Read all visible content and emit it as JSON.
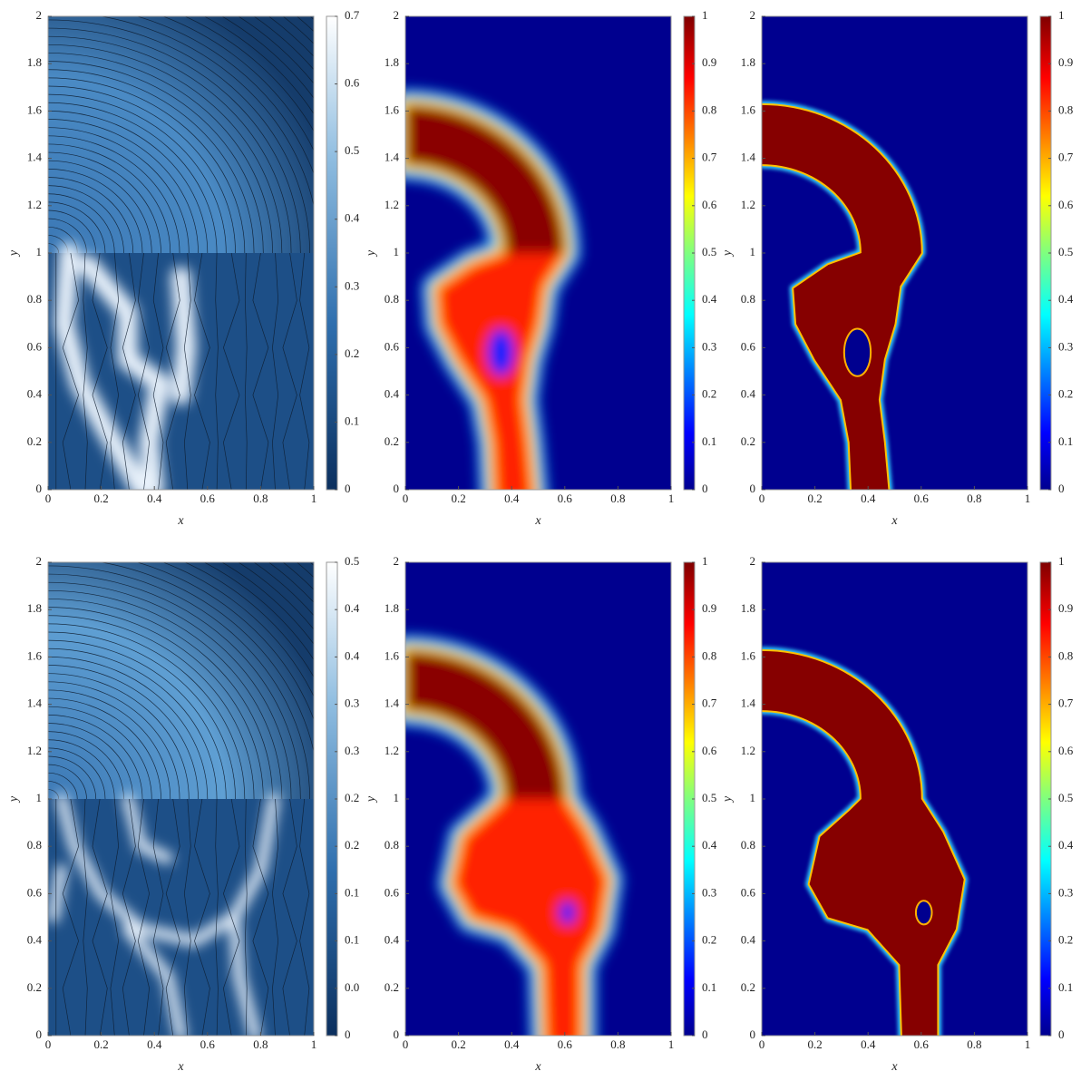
{
  "chart_data": [
    {
      "type": "contour",
      "colormap": "blues",
      "xlabel": "x",
      "ylabel": "y",
      "xlim": [
        0,
        1
      ],
      "ylim": [
        0,
        2
      ],
      "xticks": [
        0,
        0.2,
        0.4,
        0.6,
        0.8,
        1
      ],
      "yticks": [
        0,
        0.2,
        0.4,
        0.6,
        0.8,
        1,
        1.2,
        1.4,
        1.6,
        1.8,
        2
      ],
      "clim": [
        0,
        0.7
      ],
      "cticks": [
        0,
        0.1,
        0.2,
        0.3,
        0.4,
        0.5,
        0.6,
        0.7
      ]
    },
    {
      "type": "contour",
      "colormap": "jet",
      "xlabel": "x",
      "ylabel": "y",
      "xlim": [
        0,
        1
      ],
      "ylim": [
        0,
        2
      ],
      "xticks": [
        0,
        0.2,
        0.4,
        0.6,
        0.8,
        1
      ],
      "yticks": [
        0,
        0.2,
        0.4,
        0.6,
        0.8,
        1,
        1.2,
        1.4,
        1.6,
        1.8,
        2
      ],
      "clim": [
        0,
        1
      ],
      "cticks": [
        0,
        0.1,
        0.2,
        0.3,
        0.4,
        0.5,
        0.6,
        0.7,
        0.8,
        0.9,
        1
      ]
    },
    {
      "type": "contour",
      "colormap": "jet",
      "xlabel": "x",
      "ylabel": "y",
      "xlim": [
        0,
        1
      ],
      "ylim": [
        0,
        2
      ],
      "xticks": [
        0,
        0.2,
        0.4,
        0.6,
        0.8,
        1
      ],
      "yticks": [
        0,
        0.2,
        0.4,
        0.6,
        0.8,
        1,
        1.2,
        1.4,
        1.6,
        1.8,
        2
      ],
      "clim": [
        0,
        1
      ],
      "cticks": [
        0,
        0.1,
        0.2,
        0.3,
        0.4,
        0.5,
        0.6,
        0.7,
        0.8,
        0.9,
        1
      ]
    },
    {
      "type": "contour",
      "colormap": "blues",
      "xlabel": "x",
      "ylabel": "y",
      "xlim": [
        0,
        1
      ],
      "ylim": [
        0,
        2
      ],
      "xticks": [
        0,
        0.2,
        0.4,
        0.6,
        0.8,
        1
      ],
      "yticks": [
        0,
        0.2,
        0.4,
        0.6,
        0.8,
        1,
        1.2,
        1.4,
        1.6,
        1.8,
        2
      ],
      "clim": [
        0,
        0.5
      ],
      "cticks": [
        0,
        {
          "value": 0.05,
          "label": "0.0"
        },
        0.1,
        {
          "value": 0.15,
          "label": "0.1"
        },
        0.2,
        {
          "value": 0.25,
          "label": "0.2"
        },
        0.3,
        {
          "value": 0.35,
          "label": "0.3"
        },
        0.4,
        {
          "value": 0.45,
          "label": "0.4"
        },
        0.5
      ]
    },
    {
      "type": "contour",
      "colormap": "jet",
      "xlabel": "x",
      "ylabel": "y",
      "xlim": [
        0,
        1
      ],
      "ylim": [
        0,
        2
      ],
      "xticks": [
        0,
        0.2,
        0.4,
        0.6,
        0.8,
        1
      ],
      "yticks": [
        0,
        0.2,
        0.4,
        0.6,
        0.8,
        1,
        1.2,
        1.4,
        1.6,
        1.8,
        2
      ],
      "clim": [
        0,
        1
      ],
      "cticks": [
        0,
        0.1,
        0.2,
        0.3,
        0.4,
        0.5,
        0.6,
        0.7,
        0.8,
        0.9,
        1
      ]
    },
    {
      "type": "contour",
      "colormap": "jet",
      "xlabel": "x",
      "ylabel": "y",
      "xlim": [
        0,
        1
      ],
      "ylim": [
        0,
        2
      ],
      "xticks": [
        0,
        0.2,
        0.4,
        0.6,
        0.8,
        1
      ],
      "yticks": [
        0,
        0.2,
        0.4,
        0.6,
        0.8,
        1,
        1.2,
        1.4,
        1.6,
        1.8,
        2
      ],
      "clim": [
        0,
        1
      ],
      "cticks": [
        0,
        0.1,
        0.2,
        0.3,
        0.4,
        0.5,
        0.6,
        0.7,
        0.8,
        0.9,
        1
      ]
    }
  ]
}
